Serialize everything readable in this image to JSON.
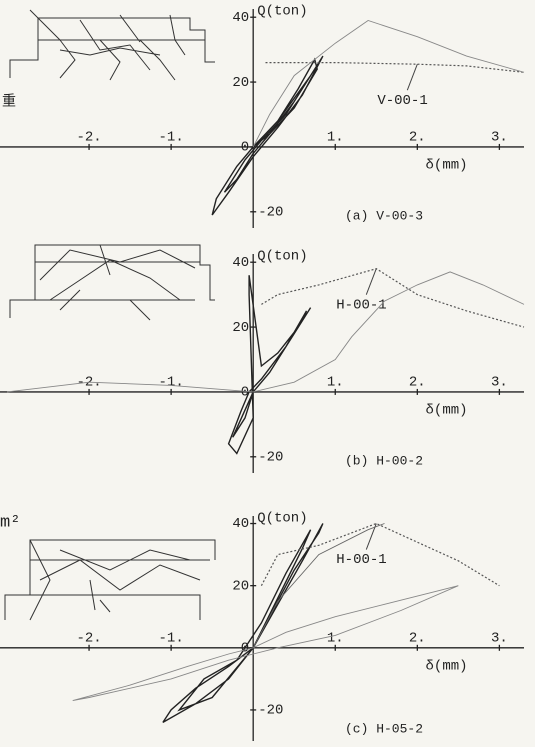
{
  "chart_data": [
    {
      "type": "line",
      "caption": "(a)  V-00-3",
      "x_label": "δ(mm)",
      "y_label": "Q(ton)",
      "xlim": [
        -3,
        3.3
      ],
      "ylim": [
        -25,
        45
      ],
      "xticks": [
        {
          "value": -2,
          "label": "-2."
        },
        {
          "value": -1,
          "label": "-1."
        },
        {
          "value": 1,
          "label": "1."
        },
        {
          "value": 2,
          "label": "2."
        },
        {
          "value": 3,
          "label": "3."
        }
      ],
      "yticks": [
        -20,
        0,
        20,
        40
      ],
      "series": [
        {
          "color": "#222",
          "line_style": "solid",
          "x": [
            0,
            0.3,
            0.55,
            0.75,
            0.78,
            0.5,
            0.2,
            0,
            -0.2,
            -0.45,
            -0.5,
            -0.3,
            0,
            0.3,
            0.6,
            0.85,
            0.7,
            0.4,
            0.1,
            -0.1,
            -0.35,
            -0.2,
            0,
            0.2,
            0.5,
            0.7,
            0.3,
            0
          ],
          "values": [
            0,
            8,
            18,
            27,
            24,
            12,
            4,
            0,
            -6,
            -16,
            -21,
            -14,
            -3,
            6,
            16,
            28,
            22,
            10,
            2,
            -4,
            -14,
            -10,
            -2,
            4,
            14,
            22,
            8,
            0
          ]
        },
        {
          "name": "V-00-1",
          "color": "#555",
          "line_style": "dotted",
          "x": [
            0.15,
            0.3,
            1.0,
            2.0,
            2.6,
            3.3
          ],
          "values": [
            26,
            26,
            26,
            25.5,
            25,
            23
          ]
        },
        {
          "color": "#888",
          "line_style": "solid",
          "x": [
            0,
            0.2,
            0.5,
            1.0,
            1.4,
            2.0,
            2.6,
            3.3
          ],
          "values": [
            0,
            10,
            22,
            32,
            39,
            34,
            28,
            23
          ]
        }
      ]
    },
    {
      "type": "line",
      "caption": "(b)  H-00-2",
      "x_label": "δ(mm)",
      "y_label": "Q(ton)",
      "xlim": [
        -3,
        3.3
      ],
      "ylim": [
        -25,
        45
      ],
      "xticks": [
        {
          "value": -2,
          "label": "-2."
        },
        {
          "value": -1,
          "label": "-1."
        },
        {
          "value": 1,
          "label": "1."
        },
        {
          "value": 2,
          "label": "2."
        },
        {
          "value": 3,
          "label": "3."
        }
      ],
      "yticks": [
        -20,
        0,
        20,
        40
      ],
      "series": [
        {
          "color": "#222",
          "line_style": "solid",
          "x": [
            0,
            0.2,
            0.4,
            0.6,
            0.65,
            0.4,
            0.1,
            -0.05,
            -0.15,
            -0.3,
            -0.2,
            0,
            -0.05,
            -0.05,
            0.1,
            0.3,
            0.55,
            0.7,
            0.5,
            0.2,
            0,
            -0.25,
            -0.1,
            0
          ],
          "values": [
            0,
            6,
            14,
            22,
            25,
            14,
            4,
            0,
            -6,
            -16,
            -19,
            -8,
            30,
            36,
            8,
            12,
            20,
            26,
            18,
            6,
            0,
            -14,
            -8,
            0
          ]
        },
        {
          "name": "H-00-1",
          "color": "#555",
          "line_style": "dotted",
          "x": [
            0.1,
            0.3,
            0.8,
            1.5,
            2.0,
            2.6,
            3.3
          ],
          "values": [
            27,
            30,
            33,
            38,
            30,
            25,
            20
          ]
        },
        {
          "color": "#888",
          "line_style": "solid",
          "x": [
            -3,
            -2,
            -1,
            -0.5,
            0,
            0.5,
            1.0,
            1.2,
            1.6,
            2.0,
            2.4,
            2.8,
            3.3
          ],
          "values": [
            0,
            3,
            2,
            1,
            0,
            3,
            10,
            17,
            28,
            33,
            37,
            33,
            27
          ]
        }
      ]
    },
    {
      "type": "line",
      "caption": "(c)  H-05-2",
      "x_label": "δ(mm)",
      "y_label": "Q(ton)",
      "xlim": [
        -3,
        3.3
      ],
      "ylim": [
        -30,
        45
      ],
      "xticks": [
        {
          "value": -2,
          "label": "-2."
        },
        {
          "value": -1,
          "label": "-1."
        },
        {
          "value": 1,
          "label": "1."
        },
        {
          "value": 2,
          "label": "2."
        },
        {
          "value": 3,
          "label": "3."
        }
      ],
      "yticks": [
        -20,
        0,
        20,
        40
      ],
      "series": [
        {
          "color": "#222",
          "line_style": "solid",
          "x": [
            0,
            0.2,
            0.5,
            0.8,
            0.85,
            0.6,
            0.3,
            0,
            -0.3,
            -0.7,
            -1.0,
            -1.1,
            -0.7,
            -0.3,
            0,
            0.3,
            0.6,
            0.7,
            0.4,
            0.1,
            -0.2,
            -0.6,
            -0.9,
            -0.5,
            0
          ],
          "values": [
            0,
            10,
            25,
            37,
            40,
            28,
            14,
            0,
            -6,
            -13,
            -20,
            -24,
            -18,
            -10,
            0,
            16,
            32,
            38,
            24,
            8,
            -4,
            -10,
            -20,
            -16,
            0
          ]
        },
        {
          "name": "H-00-1",
          "color": "#555",
          "line_style": "dotted",
          "x": [
            0.1,
            0.3,
            0.8,
            1.5,
            2.0,
            2.5,
            3.0
          ],
          "values": [
            20,
            30,
            33,
            40,
            34,
            28,
            20
          ]
        },
        {
          "color": "#888",
          "line_style": "solid",
          "x": [
            -2.2,
            -1.5,
            -0.8,
            -0.3,
            0,
            0.4,
            1.0,
            1.6,
            2.2,
            2.5,
            1.8,
            1.0,
            0.3,
            -0.3,
            -1,
            -2,
            -2.2
          ],
          "values": [
            -17,
            -12,
            -6,
            -2,
            0,
            5,
            10,
            14,
            18,
            20,
            12,
            4,
            0,
            -4,
            -10,
            -16,
            -17
          ]
        },
        {
          "color": "#666",
          "line_style": "solid",
          "x": [
            0,
            0.3,
            0.8,
            1.4,
            1.6
          ],
          "values": [
            0,
            15,
            30,
            38,
            40
          ]
        }
      ]
    }
  ],
  "margin_texts": [
    "重",
    "m²"
  ]
}
